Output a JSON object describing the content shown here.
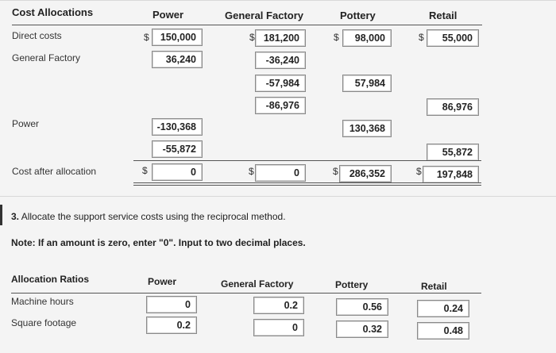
{
  "table1": {
    "headers": {
      "title": "Cost Allocations",
      "power": "Power",
      "general_factory": "General Factory",
      "pottery": "Pottery",
      "retail": "Retail"
    },
    "rows": {
      "direct_costs": "Direct costs",
      "general_factory": "General Factory",
      "power": "Power",
      "cost_after": "Cost after allocation"
    },
    "currency": "$",
    "values": {
      "direct_power": "150,000",
      "direct_gf": "181,200",
      "direct_pottery": "98,000",
      "direct_retail": "55,000",
      "gf_power": "36,240",
      "gf_gf": "-36,240",
      "gf_gf2": "-57,984",
      "gf_pottery": "57,984",
      "gf_gf3": "-86,976",
      "gf_retail": "86,976",
      "power_1": "-130,368",
      "power_pottery": "130,368",
      "power_2": "-55,872",
      "power_retail": "55,872",
      "after_power": "0",
      "after_gf": "0",
      "after_pottery": "286,352",
      "after_retail": "197,848"
    }
  },
  "question": {
    "number": "3.",
    "text": "Allocate the support service costs using the reciprocal method.",
    "note": "Note: If an amount is zero, enter \"0\". Input to two decimal places."
  },
  "table2": {
    "headers": {
      "title": "Allocation Ratios",
      "power": "Power",
      "general_factory": "General Factory",
      "pottery": "Pottery",
      "retail": "Retail"
    },
    "rows": {
      "machine_hours": "Machine hours",
      "square_footage": "Square footage"
    },
    "values": {
      "mh_power": "0",
      "mh_gf": "0.2",
      "mh_pottery": "0.56",
      "mh_retail": "0.24",
      "sf_power": "0.2",
      "sf_gf": "0",
      "sf_pottery": "0.32",
      "sf_retail": "0.48"
    }
  }
}
